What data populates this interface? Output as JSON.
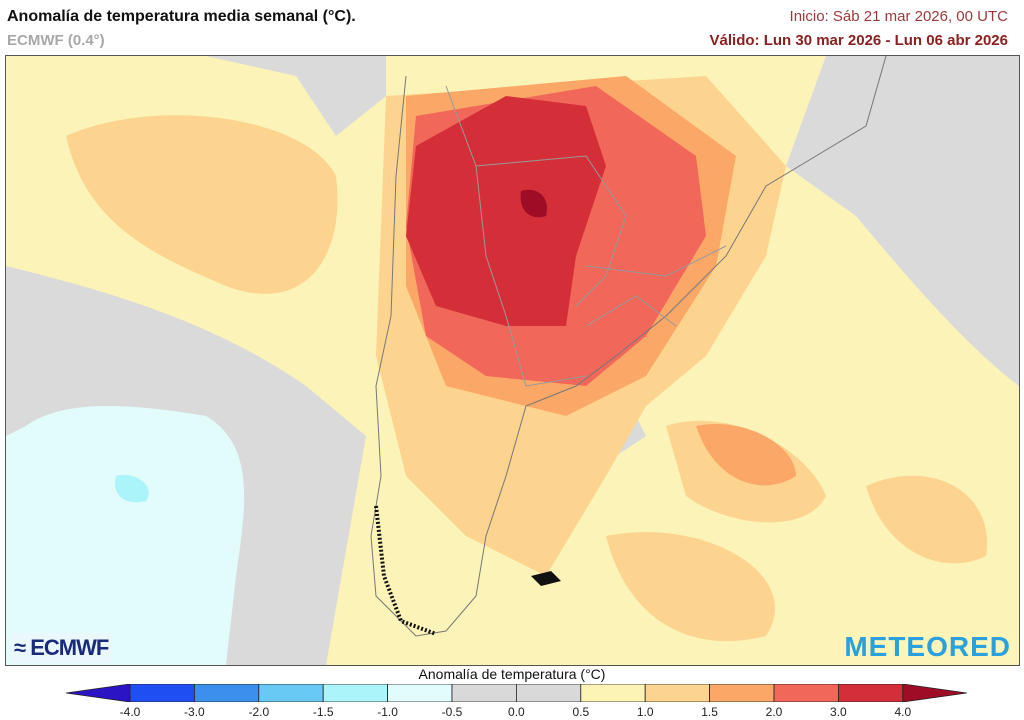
{
  "header": {
    "title": "Anomalía de temperatura media semanal (°C).",
    "model": "ECMWF (0.4°)",
    "init": "Inicio: Sáb 21 mar 2026, 00 UTC",
    "valid": "Válido: Lun 30 mar 2026 - Lun 06 abr 2026"
  },
  "map": {
    "region": "South America (southern cone)",
    "logos": {
      "left": "ECMWF",
      "right": "METEORED"
    }
  },
  "colorbar": {
    "title": "Anomalía de temperatura (°C)",
    "ticks": [
      "-4.0",
      "-3.0",
      "-2.0",
      "-1.5",
      "-1.0",
      "-0.5",
      "0.0",
      "0.5",
      "1.0",
      "1.5",
      "2.0",
      "3.0",
      "4.0"
    ],
    "under_color": "#2a14c4",
    "colors": [
      "#1f4ff2",
      "#3b90ee",
      "#68c9f4",
      "#aaf4fa",
      "#e2fbfb",
      "#d9d9d9",
      "#d9d9d9",
      "#fbf4b4",
      "#fdd48f",
      "#fba768",
      "#f1675a",
      "#d42e38"
    ],
    "over_color": "#9e0c26"
  }
}
